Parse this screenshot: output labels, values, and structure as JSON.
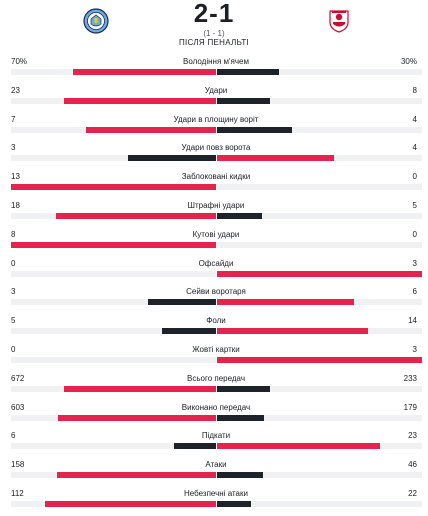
{
  "match": {
    "score": "2-1",
    "aggregate": "(1 - 1)",
    "note": "ПІСЛЯ ПЕНАЛЬТІ",
    "home_logo": "manchester-city-crest",
    "away_logo": "sevilla-crest"
  },
  "colors": {
    "higher": "#e6234c",
    "lower": "#1d2329",
    "track": "#f0f1f3"
  },
  "stats": [
    {
      "label": "Володіння м'ячем",
      "home": "70%",
      "away": "30%",
      "home_value": 70,
      "away_value": 30
    },
    {
      "label": "Удари",
      "home": "23",
      "away": "8",
      "home_value": 23,
      "away_value": 8
    },
    {
      "label": "Удари в площину воріт",
      "home": "7",
      "away": "4",
      "home_value": 7,
      "away_value": 4
    },
    {
      "label": "Удари повз ворота",
      "home": "3",
      "away": "4",
      "home_value": 3,
      "away_value": 4
    },
    {
      "label": "Заблоковані кидки",
      "home": "13",
      "away": "0",
      "home_value": 13,
      "away_value": 0
    },
    {
      "label": "Штрафні удари",
      "home": "18",
      "away": "5",
      "home_value": 18,
      "away_value": 5
    },
    {
      "label": "Кутові удари",
      "home": "8",
      "away": "0",
      "home_value": 8,
      "away_value": 0
    },
    {
      "label": "Офсайди",
      "home": "0",
      "away": "3",
      "home_value": 0,
      "away_value": 3
    },
    {
      "label": "Сейви воротаря",
      "home": "3",
      "away": "6",
      "home_value": 3,
      "away_value": 6
    },
    {
      "label": "Фоли",
      "home": "5",
      "away": "14",
      "home_value": 5,
      "away_value": 14
    },
    {
      "label": "Жовті картки",
      "home": "0",
      "away": "3",
      "home_value": 0,
      "away_value": 3
    },
    {
      "label": "Всього передач",
      "home": "672",
      "away": "233",
      "home_value": 672,
      "away_value": 233
    },
    {
      "label": "Виконано передач",
      "home": "603",
      "away": "179",
      "home_value": 603,
      "away_value": 179
    },
    {
      "label": "Підкати",
      "home": "6",
      "away": "23",
      "home_value": 6,
      "away_value": 23
    },
    {
      "label": "Атаки",
      "home": "158",
      "away": "46",
      "home_value": 158,
      "away_value": 46
    },
    {
      "label": "Небезпечні атаки",
      "home": "112",
      "away": "22",
      "home_value": 112,
      "away_value": 22
    }
  ]
}
